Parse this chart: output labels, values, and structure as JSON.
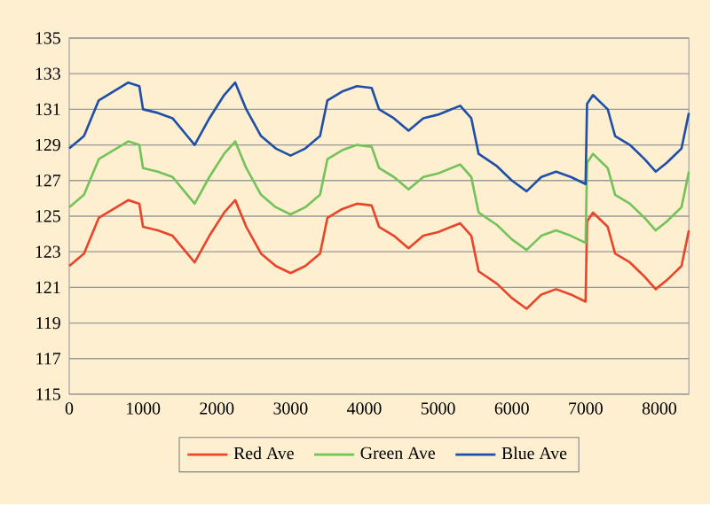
{
  "chart_data": {
    "type": "line",
    "x": [
      0,
      200,
      400,
      600,
      800,
      950,
      1000,
      1200,
      1400,
      1600,
      1700,
      1900,
      2100,
      2250,
      2400,
      2600,
      2800,
      3000,
      3200,
      3400,
      3500,
      3700,
      3900,
      4100,
      4200,
      4400,
      4600,
      4800,
      5000,
      5300,
      5450,
      5550,
      5800,
      6000,
      6200,
      6400,
      6600,
      6800,
      7000,
      7020,
      7100,
      7300,
      7400,
      7600,
      7800,
      7950,
      8100,
      8300,
      8400
    ],
    "series": [
      {
        "name": "Red Ave",
        "color": "#e8452a",
        "values": [
          122.2,
          122.9,
          124.9,
          125.4,
          125.9,
          125.7,
          124.4,
          124.2,
          123.9,
          122.9,
          122.4,
          123.9,
          125.2,
          125.9,
          124.4,
          122.9,
          122.2,
          121.8,
          122.2,
          122.9,
          124.9,
          125.4,
          125.7,
          125.6,
          124.4,
          123.9,
          123.2,
          123.9,
          124.1,
          124.6,
          123.9,
          121.9,
          121.2,
          120.4,
          119.8,
          120.6,
          120.9,
          120.6,
          120.2,
          124.7,
          125.2,
          124.4,
          122.9,
          122.4,
          121.6,
          120.9,
          121.4,
          122.2,
          124.2
        ]
      },
      {
        "name": "Green Ave",
        "color": "#74c25a",
        "values": [
          125.5,
          126.2,
          128.2,
          128.7,
          129.2,
          129,
          127.7,
          127.5,
          127.2,
          126.2,
          125.7,
          127.2,
          128.5,
          129.2,
          127.7,
          126.2,
          125.5,
          125.1,
          125.5,
          126.2,
          128.2,
          128.7,
          129,
          128.9,
          127.7,
          127.2,
          126.5,
          127.2,
          127.4,
          127.9,
          127.2,
          125.2,
          124.5,
          123.7,
          123.1,
          123.9,
          124.2,
          123.9,
          123.5,
          128,
          128.5,
          127.7,
          126.2,
          125.7,
          124.9,
          124.2,
          124.7,
          125.5,
          127.5
        ]
      },
      {
        "name": "Blue Ave",
        "color": "#1f4fa8",
        "values": [
          128.8,
          129.5,
          131.5,
          132,
          132.5,
          132.3,
          131,
          130.8,
          130.5,
          129.5,
          129,
          130.5,
          131.8,
          132.5,
          131,
          129.5,
          128.8,
          128.4,
          128.8,
          129.5,
          131.5,
          132,
          132.3,
          132.2,
          131,
          130.5,
          129.8,
          130.5,
          130.7,
          131.2,
          130.5,
          128.5,
          127.8,
          127,
          126.4,
          127.2,
          127.5,
          127.2,
          126.8,
          131.3,
          131.8,
          131,
          129.5,
          129,
          128.2,
          127.5,
          128,
          128.8,
          130.8
        ]
      }
    ],
    "xlim": [
      0,
      8400
    ],
    "xticks": [
      0,
      1000,
      2000,
      3000,
      4000,
      5000,
      6000,
      7000,
      8000
    ],
    "ylim": [
      115,
      135
    ],
    "yticks": [
      115,
      117,
      119,
      121,
      123,
      125,
      127,
      129,
      131,
      133,
      135
    ],
    "grid": "y",
    "legend": "bottom",
    "marker": "none",
    "line_style": "solid"
  }
}
